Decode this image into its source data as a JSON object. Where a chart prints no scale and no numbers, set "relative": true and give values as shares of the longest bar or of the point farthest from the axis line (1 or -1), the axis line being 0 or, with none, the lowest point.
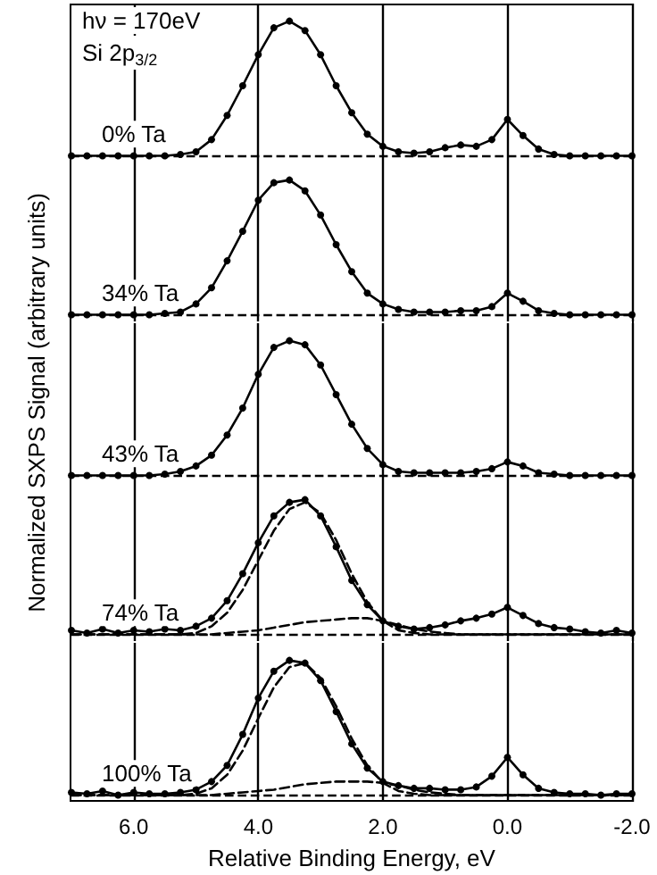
{
  "chart_data": [
    {
      "type": "line",
      "xlim": [
        7.0,
        -2.0
      ],
      "xticks": [
        6,
        4,
        2,
        0,
        -2
      ],
      "relative": true,
      "grid": "x",
      "tick_labels": false,
      "annotations": [
        "hν = 170eV",
        "Si 2p$_{3/2}$",
        "0% Ta"
      ],
      "x": [
        7,
        6.75,
        6.5,
        6.25,
        6,
        5.75,
        5.5,
        5.25,
        5,
        4.75,
        4.5,
        4.25,
        4,
        3.75,
        3.5,
        3.25,
        3,
        2.75,
        2.5,
        2.25,
        2,
        1.75,
        1.5,
        1.25,
        1,
        0.75,
        0.5,
        0.25,
        0,
        -0.25,
        -0.5,
        -0.75,
        -1,
        -1.25,
        -1.5,
        -1.75,
        -2
      ],
      "ref_lines": [
        {
          "axis": "y",
          "value": 0,
          "line_style": "dashed",
          "color": "#000000"
        }
      ],
      "series": [
        {
          "color": "#000000",
          "marker": "circle",
          "line_style": "solid",
          "values": [
            0,
            0,
            0,
            0,
            0,
            0,
            0,
            0.01,
            0.03,
            0.12,
            0.3,
            0.52,
            0.75,
            0.95,
            1.0,
            0.93,
            0.75,
            0.52,
            0.32,
            0.16,
            0.07,
            0.03,
            0.02,
            0.03,
            0.06,
            0.08,
            0.07,
            0.12,
            0.27,
            0.15,
            0.05,
            0.01,
            0,
            0,
            0,
            0,
            0
          ]
        }
      ]
    },
    {
      "type": "line",
      "xlim": [
        7.0,
        -2.0
      ],
      "xticks": [
        6,
        4,
        2,
        0,
        -2
      ],
      "relative": true,
      "grid": "x",
      "tick_labels": false,
      "annotations": [
        "34% Ta"
      ],
      "x": [
        7,
        6.75,
        6.5,
        6.25,
        6,
        5.75,
        5.5,
        5.25,
        5,
        4.75,
        4.5,
        4.25,
        4,
        3.75,
        3.5,
        3.25,
        3,
        2.75,
        2.5,
        2.25,
        2,
        1.75,
        1.5,
        1.25,
        1,
        0.75,
        0.5,
        0.25,
        0,
        -0.25,
        -0.5,
        -0.75,
        -1,
        -1.25,
        -1.5,
        -1.75,
        -2
      ],
      "ref_lines": [
        {
          "axis": "y",
          "value": 0,
          "line_style": "dashed",
          "color": "#000000"
        }
      ],
      "series": [
        {
          "color": "#000000",
          "marker": "circle",
          "line_style": "solid",
          "values": [
            0,
            0,
            0,
            0,
            0,
            0,
            0.01,
            0.02,
            0.08,
            0.2,
            0.4,
            0.62,
            0.85,
            0.98,
            1.0,
            0.92,
            0.74,
            0.52,
            0.32,
            0.16,
            0.08,
            0.04,
            0.02,
            0.02,
            0.02,
            0.03,
            0.03,
            0.06,
            0.16,
            0.1,
            0.03,
            0.01,
            0,
            0,
            0,
            0,
            0
          ]
        }
      ]
    },
    {
      "type": "line",
      "xlim": [
        7.0,
        -2.0
      ],
      "xticks": [
        6,
        4,
        2,
        0,
        -2
      ],
      "relative": true,
      "grid": "x",
      "tick_labels": false,
      "ylabel": "Normalized SXPS Signal (arbitrary units)",
      "annotations": [
        "43% Ta"
      ],
      "x": [
        7,
        6.75,
        6.5,
        6.25,
        6,
        5.75,
        5.5,
        5.25,
        5,
        4.75,
        4.5,
        4.25,
        4,
        3.75,
        3.5,
        3.25,
        3,
        2.75,
        2.5,
        2.25,
        2,
        1.75,
        1.5,
        1.25,
        1,
        0.75,
        0.5,
        0.25,
        0,
        -0.25,
        -0.5,
        -0.75,
        -1,
        -1.25,
        -1.5,
        -1.75,
        -2
      ],
      "ref_lines": [
        {
          "axis": "y",
          "value": 0,
          "line_style": "dashed",
          "color": "#000000"
        }
      ],
      "series": [
        {
          "color": "#000000",
          "marker": "circle",
          "line_style": "solid",
          "values": [
            0,
            0,
            0,
            0,
            0,
            0,
            0.01,
            0.03,
            0.07,
            0.15,
            0.3,
            0.5,
            0.75,
            0.95,
            1.0,
            0.97,
            0.82,
            0.6,
            0.38,
            0.2,
            0.08,
            0.03,
            0.02,
            0.02,
            0.02,
            0.02,
            0.03,
            0.05,
            0.1,
            0.07,
            0.02,
            0.01,
            0,
            0,
            0,
            0,
            0
          ]
        }
      ]
    },
    {
      "type": "line",
      "xlim": [
        7.0,
        -2.0
      ],
      "xticks": [
        6,
        4,
        2,
        0,
        -2
      ],
      "relative": true,
      "grid": "x",
      "tick_labels": false,
      "annotations": [
        "74% Ta"
      ],
      "x": [
        7,
        6.75,
        6.5,
        6.25,
        6,
        5.75,
        5.5,
        5.25,
        5,
        4.75,
        4.5,
        4.25,
        4,
        3.75,
        3.5,
        3.25,
        3,
        2.75,
        2.5,
        2.25,
        2,
        1.75,
        1.5,
        1.25,
        1,
        0.75,
        0.5,
        0.25,
        0,
        -0.25,
        -0.5,
        -0.75,
        -1,
        -1.25,
        -1.5,
        -1.75,
        -2
      ],
      "ref_lines": [
        {
          "axis": "y",
          "value": 0,
          "line_style": "dashed",
          "color": "#000000"
        }
      ],
      "series": [
        {
          "color": "#000000",
          "marker": "circle",
          "line_style": "solid",
          "values": [
            0.03,
            0.01,
            0.04,
            0.01,
            0.03,
            0.02,
            0.04,
            0.03,
            0.06,
            0.12,
            0.25,
            0.45,
            0.68,
            0.88,
            0.98,
            1.0,
            0.88,
            0.65,
            0.4,
            0.22,
            0.1,
            0.06,
            0.04,
            0.05,
            0.07,
            0.1,
            0.12,
            0.15,
            0.2,
            0.14,
            0.08,
            0.05,
            0.04,
            0.02,
            0.01,
            0.03,
            0.01
          ]
        },
        {
          "color": "#000000",
          "marker": "none",
          "line_style": "dashed",
          "values": [
            0,
            0,
            0,
            0,
            0,
            0,
            0,
            0,
            0.01,
            0.06,
            0.16,
            0.33,
            0.55,
            0.77,
            0.93,
            0.98,
            0.9,
            0.7,
            0.45,
            0.24,
            0.1,
            0.03,
            0.01,
            0,
            0,
            0,
            0,
            0,
            0,
            0,
            0,
            0,
            0,
            0,
            0,
            0,
            0
          ]
        },
        {
          "color": "#000000",
          "marker": "none",
          "line_style": "dashed",
          "values": [
            0,
            0,
            0,
            0,
            0,
            0,
            0,
            0,
            0,
            0,
            0.01,
            0.02,
            0.03,
            0.05,
            0.07,
            0.09,
            0.1,
            0.11,
            0.12,
            0.12,
            0.1,
            0.07,
            0.04,
            0.02,
            0.01,
            0,
            0,
            0,
            0,
            0,
            0,
            0,
            0,
            0,
            0,
            0,
            0
          ]
        }
      ]
    },
    {
      "type": "line",
      "xlim": [
        7.0,
        -2.0
      ],
      "xticks": [
        {
          "value": 6,
          "label": "6.0"
        },
        {
          "value": 4,
          "label": "4.0"
        },
        {
          "value": 2,
          "label": "2.0"
        },
        {
          "value": 0,
          "label": "0.0"
        },
        {
          "value": -2,
          "label": "-2.0"
        }
      ],
      "relative": true,
      "grid": "x",
      "tick_labels": "x",
      "xlabel": "Relative Binding Energy, eV",
      "annotations": [
        "100% Ta"
      ],
      "x": [
        7,
        6.75,
        6.5,
        6.25,
        6,
        5.75,
        5.5,
        5.25,
        5,
        4.75,
        4.5,
        4.25,
        4,
        3.75,
        3.5,
        3.25,
        3,
        2.75,
        2.5,
        2.25,
        2,
        1.75,
        1.5,
        1.25,
        1,
        0.75,
        0.5,
        0.25,
        0,
        -0.25,
        -0.5,
        -0.75,
        -1,
        -1.25,
        -1.5,
        -1.75,
        -2
      ],
      "ref_lines": [
        {
          "axis": "y",
          "value": 0,
          "line_style": "dashed",
          "color": "#000000"
        }
      ],
      "series": [
        {
          "color": "#000000",
          "marker": "circle",
          "line_style": "solid",
          "values": [
            0.02,
            0.01,
            0.03,
            0.0,
            0.02,
            0.01,
            0.01,
            0.02,
            0.04,
            0.1,
            0.22,
            0.45,
            0.72,
            0.92,
            1.0,
            0.98,
            0.85,
            0.62,
            0.38,
            0.2,
            0.1,
            0.07,
            0.05,
            0.05,
            0.04,
            0.04,
            0.06,
            0.14,
            0.28,
            0.15,
            0.05,
            0.02,
            0.01,
            0.01,
            0.0,
            0.01,
            0.01
          ]
        },
        {
          "color": "#000000",
          "marker": "none",
          "line_style": "dashed",
          "values": [
            0,
            0,
            0,
            0,
            0,
            0,
            0,
            0,
            0.01,
            0.05,
            0.15,
            0.33,
            0.57,
            0.8,
            0.95,
            0.98,
            0.87,
            0.66,
            0.42,
            0.22,
            0.09,
            0.03,
            0.01,
            0,
            0,
            0,
            0,
            0,
            0,
            0,
            0,
            0,
            0,
            0,
            0,
            0,
            0
          ]
        },
        {
          "color": "#000000",
          "marker": "none",
          "line_style": "dashed",
          "values": [
            0,
            0,
            0,
            0,
            0,
            0,
            0,
            0,
            0,
            0,
            0.01,
            0.02,
            0.03,
            0.04,
            0.06,
            0.08,
            0.09,
            0.1,
            0.1,
            0.1,
            0.09,
            0.07,
            0.04,
            0.02,
            0.01,
            0,
            0,
            0,
            0,
            0,
            0,
            0,
            0,
            0,
            0,
            0,
            0
          ]
        }
      ]
    }
  ]
}
